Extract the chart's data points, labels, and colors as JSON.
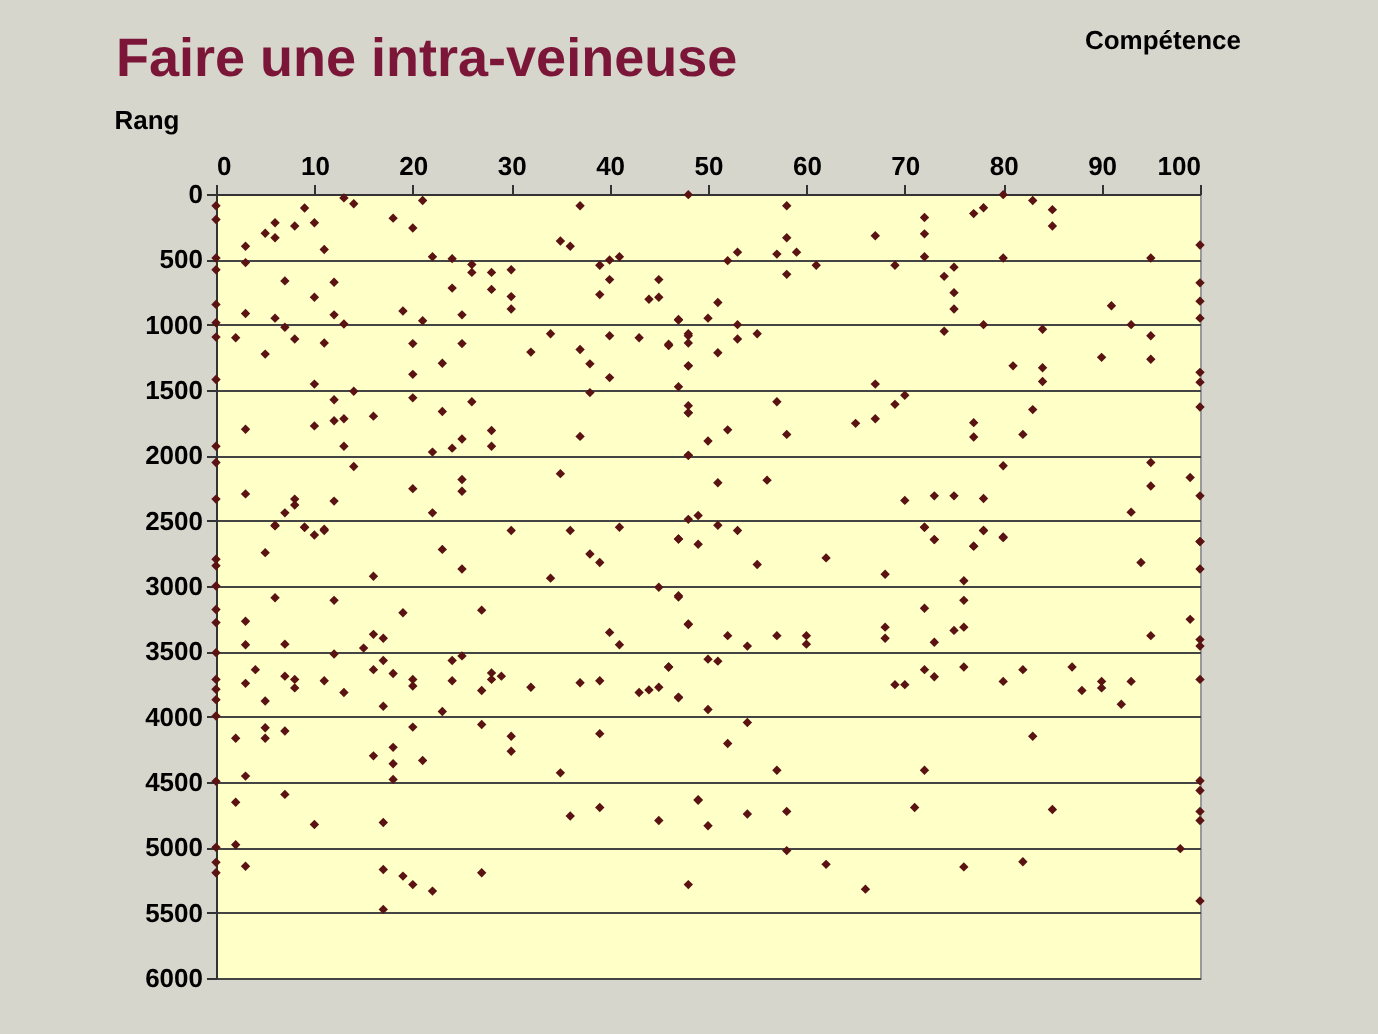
{
  "chart_data": {
    "type": "scatter",
    "title": "Faire une intra-veineuse",
    "xlabel": "Compétence",
    "ylabel": "Rang",
    "xlim": [
      0,
      100
    ],
    "xticks": [
      0,
      10,
      20,
      30,
      40,
      50,
      60,
      70,
      80,
      90,
      100
    ],
    "ylim": [
      6000,
      0
    ],
    "yticks": [
      0,
      500,
      1000,
      1500,
      2000,
      2500,
      3000,
      3500,
      4000,
      4500,
      5000,
      5500,
      6000
    ],
    "grid": "y",
    "marker": "diamond",
    "series": [
      {
        "color": "#5a1212",
        "x": [
          0,
          0,
          3,
          3,
          5,
          6,
          6,
          8,
          9,
          10,
          11,
          13,
          14,
          18,
          20,
          21,
          22,
          24,
          26,
          26,
          28,
          30,
          28,
          30,
          30,
          24,
          25,
          21,
          19,
          12,
          10,
          7,
          12,
          13,
          3,
          6,
          7,
          8,
          2,
          5,
          11,
          20,
          25,
          23,
          20,
          10,
          14,
          12,
          20,
          26,
          16,
          12,
          13,
          10,
          3,
          23,
          25,
          28,
          28,
          13,
          14,
          22,
          24,
          0,
          0,
          3,
          0,
          20,
          25,
          25,
          12,
          8,
          8,
          7,
          6,
          9,
          10,
          11,
          22,
          30,
          36,
          41,
          35,
          37,
          38,
          40,
          38,
          37,
          32,
          34,
          40,
          43,
          46,
          47,
          48,
          48,
          48,
          47,
          48,
          48,
          48,
          35,
          36,
          37,
          39,
          40,
          41,
          40,
          39,
          44,
          45,
          45,
          48,
          0,
          0,
          0,
          0,
          0,
          0,
          58,
          58,
          59,
          57,
          53,
          52,
          58,
          61,
          67,
          72,
          72,
          72,
          69,
          74,
          75,
          75,
          75,
          74,
          77,
          78,
          80,
          83,
          85,
          85,
          80,
          78,
          84,
          81,
          84,
          84,
          83,
          82,
          77,
          77,
          80,
          95,
          100,
          100,
          100,
          100,
          100,
          100,
          100,
          91,
          93,
          95,
          95,
          90,
          95,
          95,
          99,
          100,
          93,
          100,
          67,
          70,
          69,
          67,
          65,
          57,
          58,
          52,
          50,
          48,
          48,
          51,
          56,
          70,
          73,
          75,
          78,
          49,
          48,
          51,
          53,
          72,
          73,
          78,
          80,
          77,
          47,
          49,
          50,
          51,
          51,
          53,
          53,
          55,
          48,
          47,
          46,
          48,
          0,
          0,
          0,
          0,
          0,
          0,
          0,
          0,
          0,
          0,
          0,
          0,
          0,
          0,
          2,
          2,
          2,
          3,
          3,
          3,
          3,
          3,
          4,
          5,
          5,
          5,
          5,
          6,
          6,
          7,
          7,
          7,
          7,
          8,
          8,
          9,
          11,
          10,
          11,
          12,
          12,
          13,
          15,
          16,
          16,
          16,
          16,
          17,
          17,
          17,
          17,
          17,
          17,
          18,
          18,
          18,
          18,
          19,
          19,
          20,
          20,
          20,
          20,
          21,
          22,
          23,
          23,
          24,
          24,
          25,
          25,
          27,
          27,
          27,
          27,
          28,
          28,
          29,
          30,
          30,
          32,
          34,
          35,
          36,
          37,
          38,
          39,
          39,
          39,
          39,
          40,
          41,
          43,
          44,
          45,
          45,
          45,
          46,
          47,
          47,
          47,
          48,
          48,
          49,
          55,
          62,
          68,
          72,
          73,
          77,
          78,
          80,
          76,
          94,
          100,
          100,
          47,
          48,
          52,
          54,
          57,
          60,
          60,
          68,
          68,
          72,
          73,
          75,
          76,
          76,
          95,
          99,
          100,
          100,
          46,
          50,
          51,
          47,
          50,
          69,
          70,
          72,
          73,
          76,
          80,
          82,
          87,
          88,
          90,
          90,
          92,
          93,
          100,
          54,
          52,
          83,
          57,
          72,
          100,
          100,
          100,
          100,
          49,
          50,
          54,
          58,
          71,
          85,
          58,
          62,
          76,
          82,
          98,
          66,
          100
        ],
        "values": [
          90,
          195,
          400,
          525,
          300,
          220,
          335,
          245,
          107,
          220,
          425,
          30,
          75,
          185,
          260,
          50,
          480,
          495,
          540,
          600,
          600,
          580,
          730,
          785,
          880,
          720,
          925,
          970,
          895,
          675,
          790,
          665,
          925,
          995,
          915,
          950,
          1020,
          1110,
          1100,
          1225,
          1140,
          1145,
          1145,
          1295,
          1380,
          1455,
          1510,
          1575,
          1560,
          1590,
          1700,
          1735,
          1720,
          1775,
          1800,
          1665,
          1875,
          1810,
          1930,
          1930,
          2085,
          1975,
          1945,
          1930,
          2055,
          2295,
          2335,
          2255,
          2185,
          2275,
          2350,
          2335,
          2380,
          2440,
          2535,
          2550,
          2610,
          2575,
          2440,
          2575,
          2575,
          2550,
          2140,
          1855,
          1520,
          1405,
          1300,
          1190,
          1210,
          1070,
          1085,
          1100,
          1160,
          965,
          1070,
          1140,
          1315,
          1475,
          1620,
          1675,
          2000,
          360,
          400,
          90,
          545,
          505,
          480,
          655,
          770,
          805,
          790,
          655,
          5,
          490,
          580,
          845,
          985,
          1095,
          1420,
          90,
          335,
          445,
          460,
          445,
          510,
          615,
          545,
          320,
          180,
          305,
          480,
          545,
          630,
          560,
          755,
          880,
          1050,
          150,
          105,
          5,
          50,
          120,
          245,
          490,
          1000,
          1035,
          1315,
          1330,
          1435,
          1650,
          1840,
          1750,
          1860,
          2080,
          490,
          390,
          680,
          820,
          950,
          1365,
          1440,
          1630,
          855,
          1000,
          1085,
          1265,
          1250,
          2055,
          2235,
          2170,
          2310,
          2435,
          2660,
          1455,
          1540,
          1610,
          1720,
          1755,
          1590,
          1840,
          1805,
          1890,
          2000,
          1675,
          2210,
          2190,
          2345,
          2310,
          2310,
          2330,
          2460,
          2490,
          2535,
          2575,
          2550,
          2645,
          2575,
          2625,
          2695,
          2640,
          2680,
          950,
          830,
          1215,
          1000,
          1110,
          1070,
          1085,
          960,
          1150,
          1315,
          2795,
          2845,
          3000,
          3180,
          3280,
          3510,
          3715,
          3790,
          3870,
          3995,
          4495,
          5000,
          5115,
          5195,
          4165,
          4655,
          4980,
          3270,
          3450,
          3745,
          4455,
          5145,
          3640,
          2745,
          3880,
          4085,
          4165,
          2540,
          3090,
          3445,
          3690,
          4110,
          4595,
          3715,
          3780,
          2550,
          2565,
          4825,
          3725,
          3110,
          3520,
          3815,
          3475,
          2925,
          3370,
          3640,
          4300,
          3400,
          3570,
          3920,
          4810,
          5170,
          5475,
          3670,
          4235,
          4360,
          4480,
          3205,
          5220,
          3715,
          3765,
          4080,
          5285,
          4335,
          5335,
          2720,
          3960,
          3570,
          3725,
          2870,
          3535,
          3185,
          3800,
          4060,
          5195,
          3665,
          3715,
          3690,
          4150,
          4265,
          3775,
          2940,
          4430,
          4760,
          3740,
          2755,
          2820,
          3725,
          4130,
          4695,
          3355,
          3450,
          3815,
          3795,
          3775,
          3010,
          4795,
          3620,
          2640,
          3085,
          3855,
          3295,
          5285,
          4635,
          2835,
          2785,
          2910,
          2550,
          2645,
          2695,
          2575,
          2630,
          2960,
          2820,
          2660,
          2870,
          3075,
          3290,
          3380,
          3460,
          3380,
          3380,
          3445,
          3315,
          3400,
          3170,
          3430,
          3340,
          3315,
          3110,
          3380,
          3255,
          3410,
          3460,
          3620,
          3560,
          3575,
          3850,
          3945,
          3755,
          3755,
          3640,
          3695,
          3620,
          3730,
          3640,
          3620,
          3800,
          3730,
          3780,
          3905,
          3730,
          3715,
          4045,
          4205,
          4150,
          4410,
          4410,
          4490,
          4565,
          4725,
          4795,
          4640,
          4835,
          4745,
          4725,
          4695,
          4710,
          5025,
          5130,
          5150,
          5110,
          5010,
          5320,
          5410
        ]
      }
    ]
  }
}
